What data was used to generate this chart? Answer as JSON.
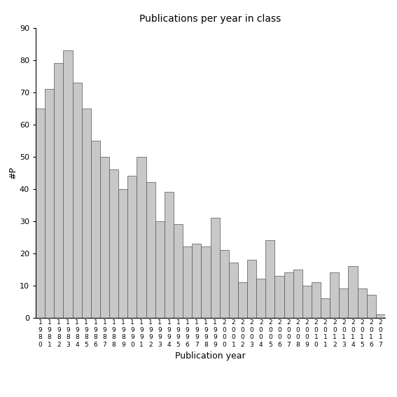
{
  "title": "Publications per year in class",
  "xlabel": "Publication year",
  "ylabel": "#P",
  "ylim": [
    0,
    90
  ],
  "yticks": [
    0,
    10,
    20,
    30,
    40,
    50,
    60,
    70,
    80,
    90
  ],
  "bar_color": "#c8c8c8",
  "bar_edgecolor": "#555555",
  "background_color": "#ffffff",
  "years": [
    "1980",
    "1981",
    "1982",
    "1983",
    "1984",
    "1985",
    "1986",
    "1987",
    "1988",
    "1989",
    "1990",
    "1991",
    "1992",
    "1993",
    "1994",
    "1995",
    "1996",
    "1997",
    "1998",
    "1999",
    "2000",
    "2001",
    "2002",
    "2003",
    "2004",
    "2005",
    "2006",
    "2007",
    "2008",
    "2009",
    "2010",
    "2011",
    "2012",
    "2013",
    "2014",
    "2015",
    "2016",
    "2017"
  ],
  "values": [
    65,
    71,
    79,
    83,
    73,
    65,
    55,
    50,
    46,
    40,
    44,
    50,
    42,
    30,
    39,
    29,
    22,
    23,
    22,
    31,
    21,
    17,
    11,
    18,
    12,
    24,
    13,
    14,
    15,
    10,
    11,
    6,
    14,
    9,
    16,
    9,
    7,
    1
  ]
}
